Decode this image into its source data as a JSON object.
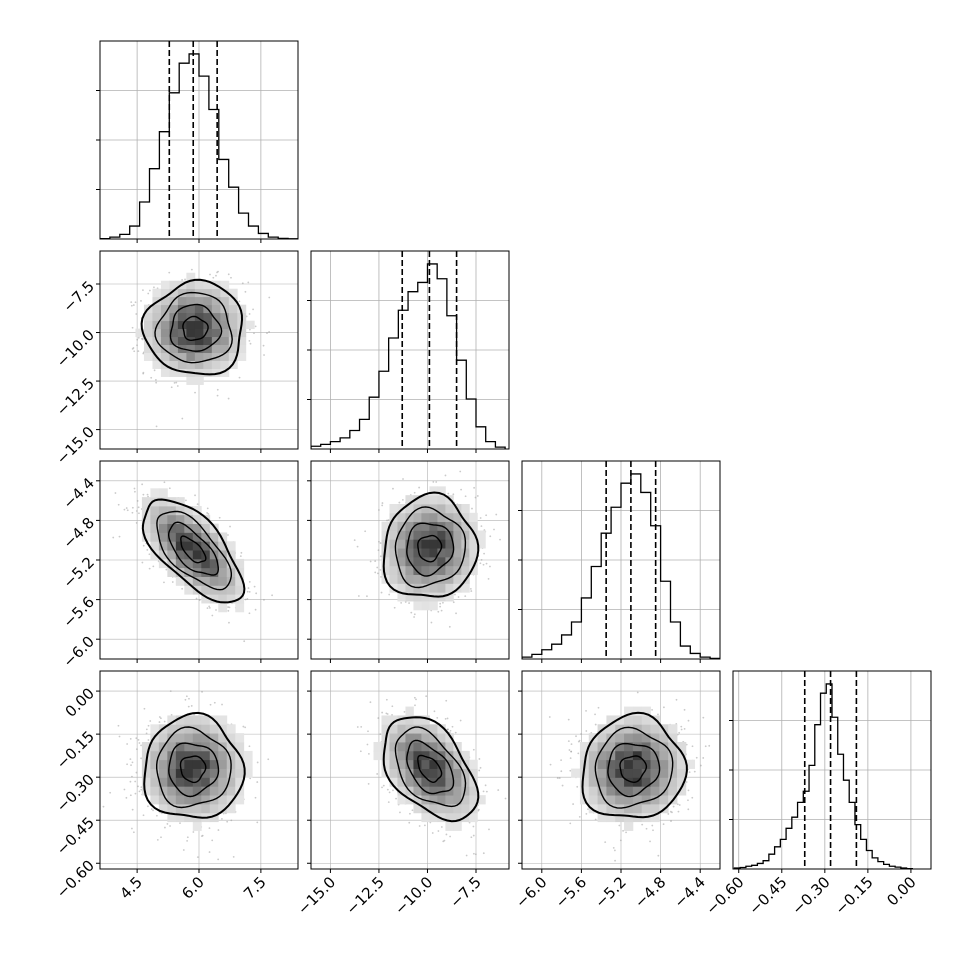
{
  "chart_data": {
    "type": "corner",
    "parameters": [
      {
        "label": "",
        "range": [
          3.6,
          8.4
        ],
        "ticks": [
          "4.5",
          "6.0",
          "7.5"
        ],
        "tick_values": [
          4.5,
          6.0,
          7.5
        ],
        "quantiles": [
          5.28,
          5.86,
          6.44
        ],
        "hist_ylim": [
          0,
          1.0
        ],
        "hist_x": [
          3.72,
          3.96,
          4.2,
          4.44,
          4.68,
          4.92,
          5.16,
          5.4,
          5.64,
          5.88,
          6.12,
          6.36,
          6.6,
          6.84,
          7.08,
          7.32,
          7.56,
          7.8,
          8.04,
          8.28
        ],
        "hist_y": [
          0.002,
          0.01,
          0.025,
          0.07,
          0.2,
          0.38,
          0.58,
          0.79,
          0.95,
          1.0,
          0.88,
          0.7,
          0.43,
          0.28,
          0.14,
          0.07,
          0.03,
          0.01,
          0.003,
          0.001
        ]
      },
      {
        "label": "",
        "range": [
          -16.0,
          -5.8
        ],
        "ticks": [
          "−15.0",
          "−12.5",
          "−10.0",
          "−7.5"
        ],
        "tick_values": [
          -15.0,
          -12.5,
          -10.0,
          -7.5
        ],
        "quantiles": [
          -11.3,
          -9.9,
          -8.5
        ],
        "hist_ylim": [
          0,
          1.0
        ],
        "hist_x": [
          -15.75,
          -15.25,
          -14.75,
          -14.25,
          -13.75,
          -13.25,
          -12.75,
          -12.25,
          -11.75,
          -11.25,
          -10.75,
          -10.25,
          -9.75,
          -9.25,
          -8.75,
          -8.25,
          -7.75,
          -7.25,
          -6.75,
          -6.25
        ],
        "hist_y": [
          0.015,
          0.025,
          0.04,
          0.06,
          0.1,
          0.16,
          0.28,
          0.42,
          0.6,
          0.75,
          0.85,
          0.9,
          1.0,
          0.92,
          0.72,
          0.48,
          0.27,
          0.12,
          0.04,
          0.01
        ]
      },
      {
        "label": "",
        "range": [
          -6.2,
          -4.2
        ],
        "ticks": [
          "−6.0",
          "−5.6",
          "−5.2",
          "−4.8",
          "−4.4"
        ],
        "tick_values": [
          -6.0,
          -5.6,
          -5.2,
          -4.8,
          -4.4
        ],
        "quantiles": [
          -5.35,
          -5.1,
          -4.85
        ],
        "hist_ylim": [
          0,
          1.0
        ],
        "hist_x": [
          -6.15,
          -6.05,
          -5.95,
          -5.85,
          -5.75,
          -5.65,
          -5.55,
          -5.45,
          -5.35,
          -5.25,
          -5.15,
          -5.05,
          -4.95,
          -4.85,
          -4.75,
          -4.65,
          -4.55,
          -4.45,
          -4.35,
          -4.25
        ],
        "hist_y": [
          0.01,
          0.025,
          0.05,
          0.08,
          0.13,
          0.2,
          0.33,
          0.5,
          0.68,
          0.82,
          0.95,
          1.0,
          0.9,
          0.72,
          0.42,
          0.2,
          0.07,
          0.03,
          0.01,
          0.003
        ]
      },
      {
        "label": "",
        "range": [
          -0.62,
          0.07
        ],
        "ticks": [
          "−0.60",
          "−0.45",
          "−0.30",
          "−0.15",
          "0.00"
        ],
        "tick_values": [
          -0.6,
          -0.45,
          -0.3,
          -0.15,
          0.0
        ],
        "quantiles": [
          -0.37,
          -0.28,
          -0.19
        ],
        "hist_ylim": [
          0,
          1.0
        ],
        "hist_x": [
          -0.605,
          -0.585,
          -0.565,
          -0.545,
          -0.525,
          -0.505,
          -0.485,
          -0.465,
          -0.445,
          -0.425,
          -0.405,
          -0.385,
          -0.365,
          -0.345,
          -0.325,
          -0.305,
          -0.285,
          -0.265,
          -0.245,
          -0.225,
          -0.205,
          -0.185,
          -0.165,
          -0.145,
          -0.125,
          -0.105,
          -0.085,
          -0.065,
          -0.045,
          -0.025,
          -0.005
        ],
        "hist_y": [
          0.005,
          0.008,
          0.015,
          0.02,
          0.03,
          0.045,
          0.08,
          0.12,
          0.16,
          0.22,
          0.28,
          0.36,
          0.42,
          0.56,
          0.78,
          0.95,
          1.0,
          0.82,
          0.62,
          0.48,
          0.36,
          0.24,
          0.16,
          0.1,
          0.06,
          0.04,
          0.025,
          0.015,
          0.01,
          0.005,
          0.002
        ]
      }
    ],
    "pairs": [
      {
        "row": 1,
        "col": 0,
        "mean": [
          5.9,
          -9.8
        ],
        "sigma": [
          0.6,
          1.2
        ],
        "rho": 0.0
      },
      {
        "row": 2,
        "col": 0,
        "mean": [
          5.85,
          -5.1
        ],
        "sigma": [
          0.6,
          0.26
        ],
        "rho": -0.65
      },
      {
        "row": 2,
        "col": 1,
        "mean": [
          -9.9,
          -5.08
        ],
        "sigma": [
          1.2,
          0.26
        ],
        "rho": 0.05
      },
      {
        "row": 3,
        "col": 0,
        "mean": [
          5.85,
          -0.27
        ],
        "sigma": [
          0.6,
          0.09
        ],
        "rho": 0.0
      },
      {
        "row": 3,
        "col": 1,
        "mean": [
          -9.9,
          -0.27
        ],
        "sigma": [
          1.2,
          0.09
        ],
        "rho": -0.45
      },
      {
        "row": 3,
        "col": 2,
        "mean": [
          -5.08,
          -0.27
        ],
        "sigma": [
          0.26,
          0.09
        ],
        "rho": 0.05
      }
    ],
    "contour_levels_sigma": [
      0.5,
      1.0,
      1.5,
      2.0
    ],
    "grid": true,
    "line_color": "#000000",
    "point_color": "#9e9e9e",
    "grid_color": "#b0b0b0"
  }
}
